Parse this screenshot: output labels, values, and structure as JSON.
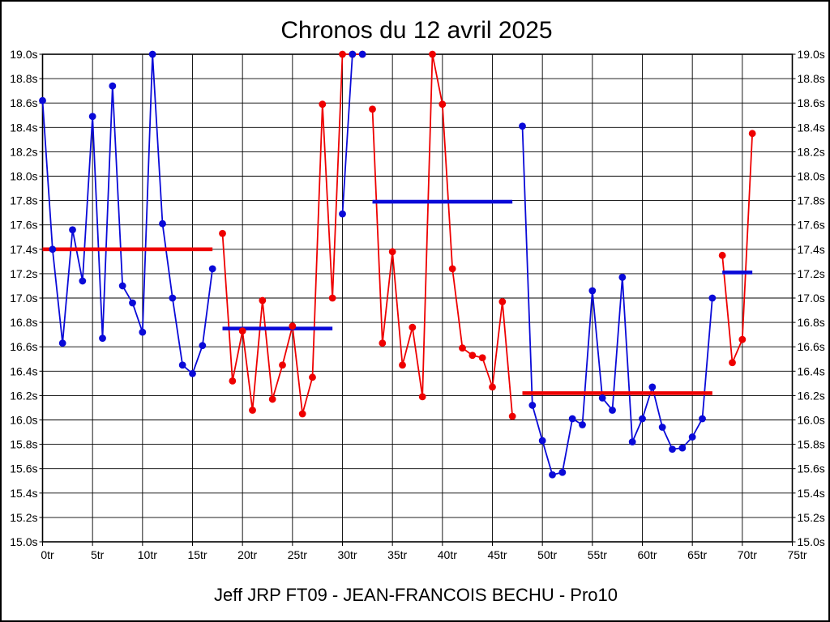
{
  "chart_data": {
    "type": "line",
    "title": "Chronos du 12 avril 2025",
    "footer": "Jeff JRP FT09 - JEAN-FRANCOIS BECHU - Pro10",
    "x_unit": "tr",
    "y_unit": "s",
    "xlim": [
      0,
      75
    ],
    "ylim": [
      15.0,
      19.0
    ],
    "grid": true,
    "x_tick_labels": [
      "0tr",
      "5tr",
      "10tr",
      "15tr",
      "20tr",
      "25tr",
      "30tr",
      "35tr",
      "40tr",
      "45tr",
      "50tr",
      "55tr",
      "60tr",
      "65tr",
      "70tr",
      "75tr"
    ],
    "y_tick_labels": [
      "19.0s",
      "18.8s",
      "18.6s",
      "18.4s",
      "18.2s",
      "18.0s",
      "17.8s",
      "17.6s",
      "17.4s",
      "17.2s",
      "17.0s",
      "16.8s",
      "16.6s",
      "16.4s",
      "16.2s",
      "16.0s",
      "15.8s",
      "15.6s",
      "15.4s",
      "15.2s",
      "15.0s"
    ],
    "colors": {
      "blue": "#0a0ad8",
      "red": "#ee0000"
    },
    "runs": [
      {
        "id": "blue-run-1",
        "color": "blue",
        "start_lap": 0,
        "values": [
          18.62,
          17.4,
          16.63,
          17.56,
          17.14,
          18.49,
          16.67,
          18.74,
          17.1,
          16.96,
          16.72,
          19.0,
          17.61,
          17.0,
          16.45,
          16.38,
          16.61,
          17.24
        ]
      },
      {
        "id": "red-run-2",
        "color": "red",
        "start_lap": 18,
        "values": [
          17.53,
          16.32,
          16.73,
          16.08,
          16.98,
          16.17,
          16.45,
          16.77,
          16.05,
          16.35,
          18.59,
          17.0,
          19.0,
          19.0,
          19.0
        ]
      },
      {
        "id": "blue-run-3",
        "color": "blue",
        "start_lap": 30,
        "values": [
          17.69,
          19.0,
          19.0
        ]
      },
      {
        "id": "red-run-4",
        "color": "red",
        "start_lap": 33,
        "values": [
          18.55,
          16.63,
          17.38,
          16.45,
          16.76,
          16.19,
          19.0,
          18.59,
          17.24,
          16.59,
          16.53,
          16.51,
          16.27,
          16.97,
          16.03
        ]
      },
      {
        "id": "blue-run-5",
        "color": "blue",
        "start_lap": 48,
        "values": [
          18.41,
          16.12,
          15.83,
          15.55,
          15.57,
          16.01,
          15.96,
          17.06,
          16.18,
          16.08,
          17.17,
          15.82,
          16.01,
          16.27,
          15.94,
          15.76,
          15.77,
          15.86,
          16.01,
          17.0
        ]
      },
      {
        "id": "red-run-6",
        "color": "red",
        "start_lap": 68,
        "values": [
          17.35,
          16.47,
          16.66,
          18.35
        ]
      }
    ],
    "average_lines": [
      {
        "id": "avg-line-1",
        "color": "red",
        "value": 17.4,
        "from_lap": 0,
        "to_lap": 17
      },
      {
        "id": "avg-line-2",
        "color": "blue",
        "value": 16.75,
        "from_lap": 18,
        "to_lap": 29
      },
      {
        "id": "avg-line-3",
        "color": "blue",
        "value": 17.79,
        "from_lap": 33,
        "to_lap": 47
      },
      {
        "id": "avg-line-4",
        "color": "red",
        "value": 16.22,
        "from_lap": 48,
        "to_lap": 67
      },
      {
        "id": "avg-line-5",
        "color": "blue",
        "value": 17.21,
        "from_lap": 68,
        "to_lap": 71
      }
    ]
  }
}
